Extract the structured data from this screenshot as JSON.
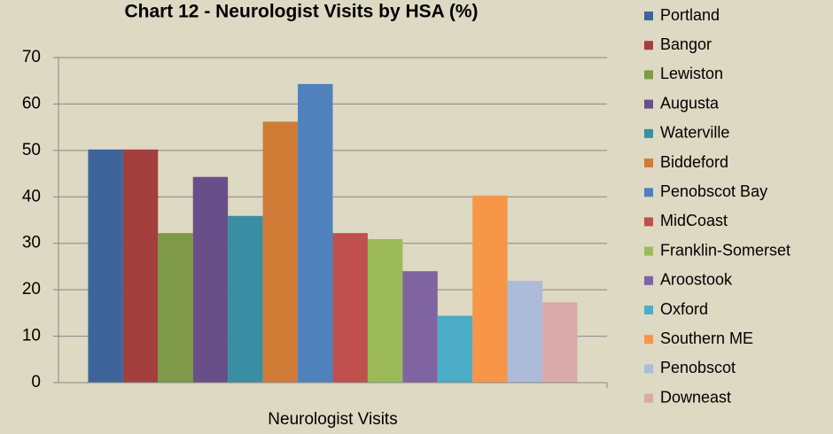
{
  "chart_data": {
    "type": "bar",
    "title": "Chart 12 - Neurologist Visits by HSA (%)",
    "categories": [
      "Neurologist Visits"
    ],
    "series": [
      {
        "name": "Portland",
        "color": "#3d659b",
        "values": [
          50.2
        ]
      },
      {
        "name": "Bangor",
        "color": "#a33f3d",
        "values": [
          50.2
        ]
      },
      {
        "name": "Lewiston",
        "color": "#7f9a48",
        "values": [
          32.2
        ]
      },
      {
        "name": "Augusta",
        "color": "#694f89",
        "values": [
          44.3
        ]
      },
      {
        "name": "Waterville",
        "color": "#3a8ea3",
        "values": [
          35.9
        ]
      },
      {
        "name": "Biddeford",
        "color": "#d07b36",
        "values": [
          56.2
        ]
      },
      {
        "name": "Penobscot Bay",
        "color": "#4f81bd",
        "values": [
          64.3
        ]
      },
      {
        "name": "MidCoast",
        "color": "#c0504d",
        "values": [
          32.2
        ]
      },
      {
        "name": "Franklin-Somerset",
        "color": "#9bbb59",
        "values": [
          30.9
        ]
      },
      {
        "name": "Aroostook",
        "color": "#8064a2",
        "values": [
          24.0
        ]
      },
      {
        "name": "Oxford",
        "color": "#4bacc6",
        "values": [
          14.4
        ]
      },
      {
        "name": "Southern ME",
        "color": "#f79646",
        "values": [
          40.3
        ]
      },
      {
        "name": "Penobscot",
        "color": "#abbbd9",
        "values": [
          21.9
        ]
      },
      {
        "name": "Downeast",
        "color": "#d9aaa9",
        "values": [
          17.3
        ]
      }
    ],
    "ylim": [
      0,
      70
    ],
    "yticks": [
      0,
      10,
      20,
      30,
      40,
      50,
      60,
      70
    ],
    "grid": true,
    "legend": "right"
  }
}
